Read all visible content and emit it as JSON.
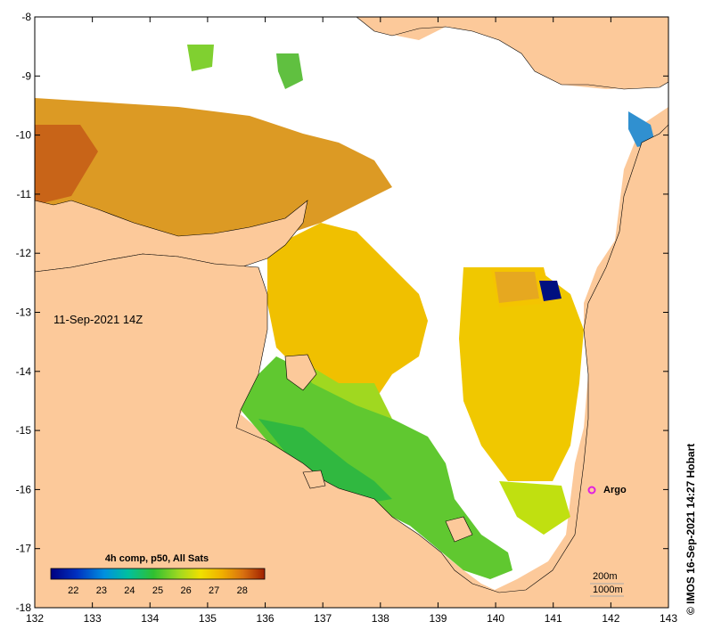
{
  "map": {
    "timestamp": "11-Sep-2021 14Z",
    "credit": "© IMOS 16-Sep-2021 14:27 Hobart",
    "lon_ticks": [
      "132",
      "133",
      "134",
      "135",
      "136",
      "137",
      "138",
      "139",
      "140",
      "141",
      "142",
      "143"
    ],
    "lat_ticks": [
      "-8",
      "-9",
      "-10",
      "-11",
      "-12",
      "-13",
      "-14",
      "-15",
      "-16",
      "-17",
      "-18"
    ],
    "legend": {
      "title": "4h comp, p50, All Sats",
      "ticks": [
        "22",
        "23",
        "24",
        "25",
        "26",
        "27",
        "28"
      ],
      "range": [
        21.2,
        28.8
      ]
    },
    "argo": {
      "label": "Argo",
      "lon": 141.7,
      "lat": -16.0
    },
    "contours": [
      "200m",
      "1000m"
    ],
    "colors": {
      "land": "#fcc99a",
      "cloud": "#ffffff",
      "argo": "#e020e0"
    }
  }
}
